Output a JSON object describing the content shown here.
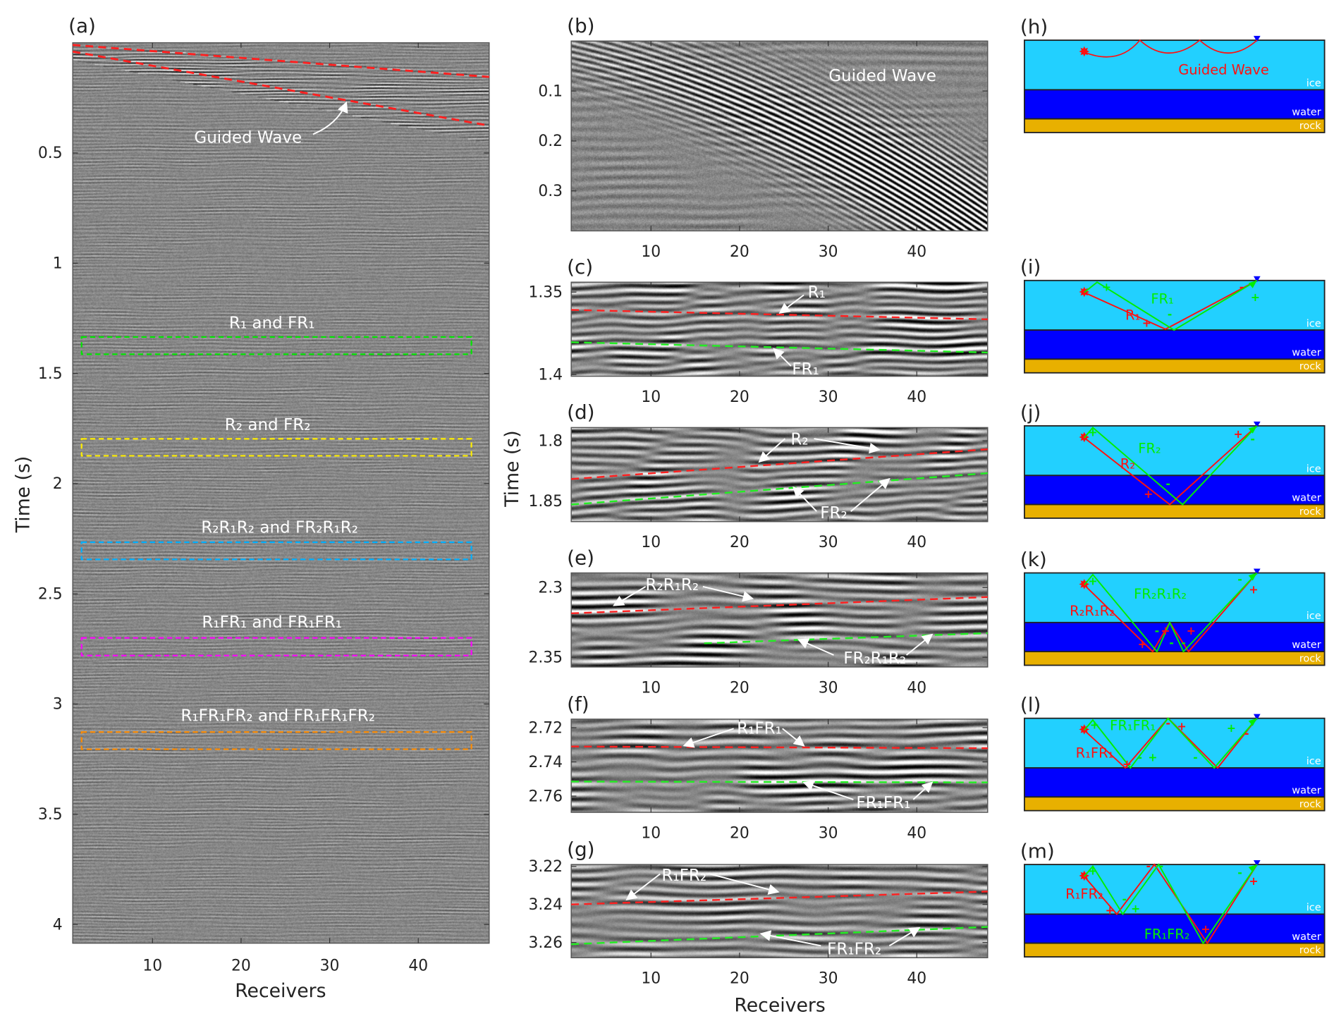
{
  "figure": {
    "shared_time_label": "Time (s)",
    "shared_receivers_label": "Receivers",
    "colors": {
      "pick_red": "#ff2020",
      "pick_green": "#22ee22",
      "ice": "#22d0ff",
      "water": "#0000ff",
      "rock": "#e8b000",
      "ray_red": "#ff1010",
      "ray_green": "#00ee00",
      "receiver": "#0000ff"
    },
    "panels": {
      "a": {
        "label": "(a)",
        "ylabel": "Time (s)",
        "xlabel": "Receivers",
        "xlim": [
          1,
          48
        ],
        "ylim": [
          0,
          4.085
        ],
        "xticks": [
          10,
          20,
          30,
          40
        ],
        "yticks": [
          0.5,
          1,
          1.5,
          2,
          2.5,
          3,
          3.5,
          4
        ],
        "guided_wave_label": "Guided Wave",
        "guided_wave_picks": [
          {
            "color": "#ff2020",
            "points": [
              [
                1,
                0.01
              ],
              [
                48,
                0.155
              ]
            ]
          },
          {
            "color": "#ff2020",
            "points": [
              [
                1,
                0.04
              ],
              [
                48,
                0.376
              ]
            ]
          }
        ],
        "windows": [
          {
            "label": "R₁ and FR₁",
            "color": "#00e600",
            "receivers": [
              2,
              46
            ],
            "time": [
              1.335,
              1.413
            ]
          },
          {
            "label": "R₂ and FR₂",
            "color": "#ffee00",
            "receivers": [
              2,
              46
            ],
            "time": [
              1.797,
              1.874
            ]
          },
          {
            "label": "R₂R₁R₂ and FR₂R₁R₂",
            "color": "#00b0ff",
            "receivers": [
              2,
              46
            ],
            "time": [
              2.266,
              2.344
            ]
          },
          {
            "label": "R₁FR₁ and FR₁FR₁",
            "color": "#ff00ff",
            "receivers": [
              2,
              46
            ],
            "time": [
              2.7,
              2.78
            ]
          },
          {
            "label": "R₁FR₁FR₂ and FR₁FR₁FR₂",
            "color": "#ff8c00",
            "receivers": [
              2,
              46
            ],
            "time": [
              3.127,
              3.205
            ]
          }
        ]
      },
      "b": {
        "label": "(b)",
        "xlim": [
          1,
          48
        ],
        "ylim": [
          0,
          0.38
        ],
        "xticks": [
          10,
          20,
          30,
          40
        ],
        "yticks": [
          0.1,
          0.2,
          0.3
        ],
        "annotation": "Guided Wave",
        "picks": []
      },
      "c": {
        "label": "(c)",
        "xlim": [
          1,
          48
        ],
        "ylim": [
          1.344,
          1.401
        ],
        "xticks": [
          10,
          20,
          30,
          40
        ],
        "yticks": [
          1.35,
          1.4
        ],
        "picks": [
          {
            "name": "R₁",
            "color": "#ff2020",
            "points": [
              [
                1,
                1.3608
              ],
              [
                48,
                1.3665
              ]
            ]
          },
          {
            "name": "FR₁",
            "color": "#22ee22",
            "points": [
              [
                1,
                1.3804
              ],
              [
                48,
                1.3866
              ]
            ]
          }
        ]
      },
      "d": {
        "label": "(d)",
        "xlim": [
          1,
          48
        ],
        "ylim": [
          1.789,
          1.867
        ],
        "xticks": [
          10,
          20,
          30,
          40
        ],
        "yticks": [
          1.8,
          1.85
        ],
        "picks": [
          {
            "name": "R₂",
            "color": "#ff2020",
            "points": [
              [
                1,
                1.8317
              ],
              [
                48,
                1.807
              ]
            ]
          },
          {
            "name": "FR₂",
            "color": "#22ee22",
            "points": [
              [
                1,
                1.8528
              ],
              [
                48,
                1.8268
              ]
            ]
          }
        ]
      },
      "e": {
        "label": "(e)",
        "xlim": [
          1,
          48
        ],
        "ylim": [
          2.2895,
          2.357
        ],
        "xticks": [
          10,
          20,
          30,
          40
        ],
        "yticks": [
          2.3,
          2.35
        ],
        "picks": [
          {
            "name": "R₂R₁R₂",
            "color": "#ff2020",
            "points": [
              [
                1,
                2.3185
              ],
              [
                48,
                2.3068
              ]
            ]
          },
          {
            "name": "FR₂R₁R₂",
            "color": "#22ee22",
            "points": [
              [
                16,
                2.34
              ],
              [
                48,
                2.3327
              ]
            ]
          }
        ]
      },
      "f": {
        "label": "(f)",
        "xlim": [
          1,
          48
        ],
        "ylim": [
          2.715,
          2.7695
        ],
        "xticks": [
          10,
          20,
          30,
          40
        ],
        "yticks": [
          2.72,
          2.74,
          2.76
        ],
        "picks": [
          {
            "name": "R₁FR₁",
            "color": "#ff2020",
            "points": [
              [
                1,
                2.731
              ],
              [
                48,
                2.732
              ]
            ]
          },
          {
            "name": "FR₁FR₁",
            "color": "#22ee22",
            "points": [
              [
                1,
                2.7515
              ],
              [
                48,
                2.752
              ]
            ]
          }
        ]
      },
      "g": {
        "label": "(g)",
        "xlim": [
          1,
          48
        ],
        "ylim": [
          3.219,
          3.268
        ],
        "xticks": [
          10,
          20,
          30,
          40
        ],
        "yticks": [
          3.22,
          3.24,
          3.26
        ],
        "xlabel": "Receivers",
        "picks": [
          {
            "name": "R₁FR₂",
            "color": "#ff2020",
            "points": [
              [
                1,
                3.24
              ],
              [
                48,
                3.2332
              ]
            ]
          },
          {
            "name": "FR₁FR₂",
            "color": "#22ee22",
            "points": [
              [
                1,
                3.2609
              ],
              [
                48,
                3.2518
              ]
            ]
          }
        ]
      }
    },
    "diagrams": [
      {
        "label": "(h)",
        "layers": [
          "ice",
          "water",
          "rock"
        ],
        "rays": [
          {
            "name": "Guided Wave",
            "color": "#ff1010"
          }
        ],
        "signs": []
      },
      {
        "label": "(i)",
        "layers": [
          "ice",
          "water",
          "rock"
        ],
        "rays": [
          {
            "name": "FR₁",
            "color": "#00ee00"
          },
          {
            "name": "R₁",
            "color": "#ff1010"
          }
        ],
        "signs": [
          {
            "text": "+",
            "color": "#00ee00"
          },
          {
            "text": "+",
            "color": "#ff1010"
          },
          {
            "text": "-",
            "color": "#00ee00"
          },
          {
            "text": "-",
            "color": "#ff1010"
          },
          {
            "text": "+",
            "color": "#00ee00"
          }
        ]
      },
      {
        "label": "(j)",
        "layers": [
          "ice",
          "water",
          "rock"
        ],
        "rays": [
          {
            "name": "FR₂",
            "color": "#00ee00"
          },
          {
            "name": "R₂",
            "color": "#ff1010"
          }
        ],
        "signs": [
          {
            "text": "+",
            "color": "#00ee00"
          },
          {
            "text": "+",
            "color": "#ff1010"
          },
          {
            "text": "-",
            "color": "#00ee00"
          },
          {
            "text": "+",
            "color": "#ff1010"
          },
          {
            "text": "-",
            "color": "#00ee00"
          }
        ]
      },
      {
        "label": "(k)",
        "layers": [
          "ice",
          "water",
          "rock"
        ],
        "rays": [
          {
            "name": "FR₂R₁R₂",
            "color": "#00ee00"
          },
          {
            "name": "R₂R₁R₂",
            "color": "#ff1010"
          }
        ],
        "signs": [
          {
            "text": "+",
            "color": "#00ee00"
          },
          {
            "text": "+",
            "color": "#ff1010"
          },
          {
            "text": "-",
            "color": "#00ee00"
          },
          {
            "text": "+",
            "color": "#ff1010"
          },
          {
            "text": "-",
            "color": "#00ee00"
          },
          {
            "text": "+",
            "color": "#ff1010"
          },
          {
            "text": "-",
            "color": "#00ee00"
          },
          {
            "text": "-",
            "color": "#00ee00"
          },
          {
            "text": "+",
            "color": "#ff1010"
          }
        ]
      },
      {
        "label": "(l)",
        "layers": [
          "ice",
          "water",
          "rock"
        ],
        "rays": [
          {
            "name": "FR₁FR₁",
            "color": "#00ee00"
          },
          {
            "name": "R₁FR₁",
            "color": "#ff1010"
          }
        ],
        "signs": [
          {
            "text": "+",
            "color": "#00ee00"
          },
          {
            "text": "-",
            "color": "#ff1010"
          },
          {
            "text": "+",
            "color": "#ff1010"
          },
          {
            "text": "+",
            "color": "#ff1010"
          },
          {
            "text": "-",
            "color": "#00ee00"
          },
          {
            "text": "+",
            "color": "#00ee00"
          },
          {
            "text": "-",
            "color": "#00ee00"
          },
          {
            "text": "+",
            "color": "#00ee00"
          },
          {
            "text": "-",
            "color": "#ff1010"
          }
        ]
      },
      {
        "label": "(m)",
        "layers": [
          "ice",
          "water",
          "rock"
        ],
        "rays": [
          {
            "name": "R₁FR₂",
            "color": "#ff1010"
          },
          {
            "name": "FR₁FR₂",
            "color": "#00ee00"
          }
        ],
        "signs": [
          {
            "text": "+",
            "color": "#00ee00"
          },
          {
            "text": "-",
            "color": "#00ee00"
          },
          {
            "text": "+",
            "color": "#ff1010"
          },
          {
            "text": "+",
            "color": "#00ee00"
          },
          {
            "text": "-",
            "color": "#ff1010"
          },
          {
            "text": "-",
            "color": "#00ee00"
          },
          {
            "text": "+",
            "color": "#ff1010"
          },
          {
            "text": "-",
            "color": "#00ee00"
          },
          {
            "text": "+",
            "color": "#ff1010"
          }
        ]
      }
    ]
  }
}
